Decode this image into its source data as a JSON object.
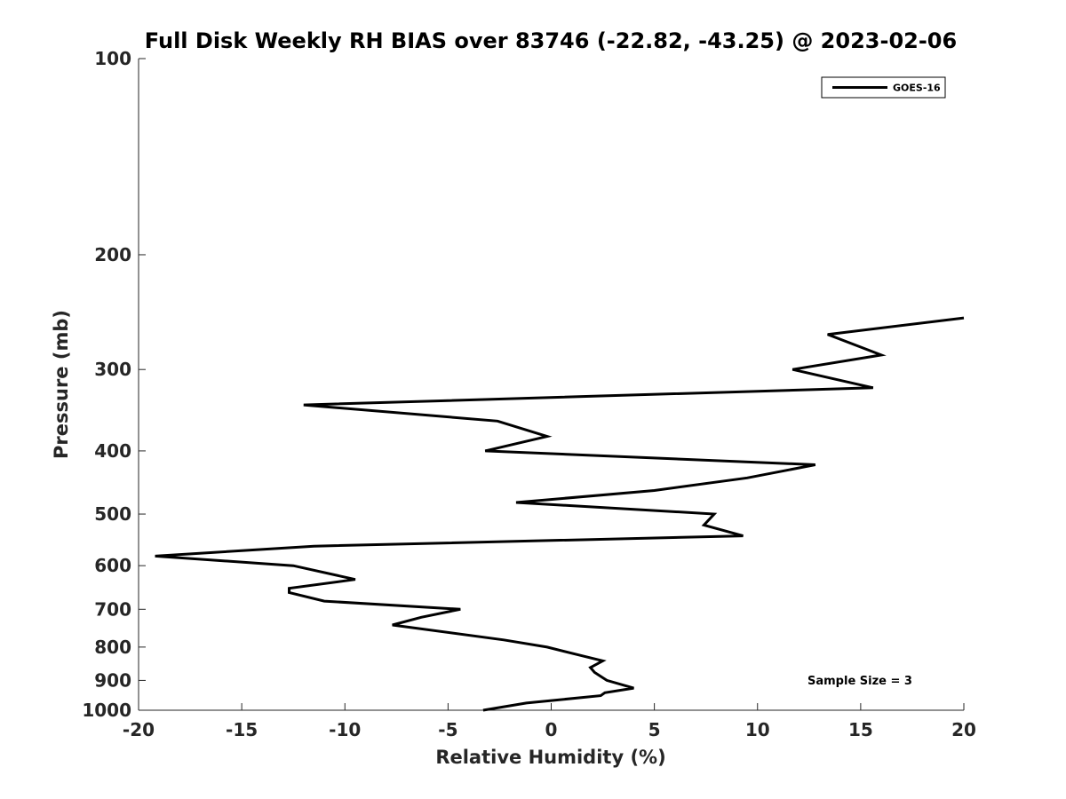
{
  "chart_data": {
    "type": "line",
    "title": "Full Disk Weekly RH BIAS over 83746 (-22.82, -43.25) @ 2023-02-06",
    "xlabel": "Relative Humidity (%)",
    "ylabel": "Pressure (mb)",
    "xlim": [
      -20,
      20
    ],
    "ylim": [
      100,
      1000
    ],
    "y_scale": "log",
    "y_inverted": true,
    "x_ticks": [
      -20,
      -15,
      -10,
      -5,
      0,
      5,
      10,
      15,
      20
    ],
    "x_tick_labels": [
      "-20",
      "-15",
      "-10",
      "-5",
      "0",
      "5",
      "10",
      "15",
      "20"
    ],
    "y_ticks": [
      100,
      200,
      300,
      400,
      500,
      600,
      700,
      800,
      900,
      1000
    ],
    "y_tick_labels": [
      "100",
      "200",
      "300",
      "400",
      "500",
      "600",
      "700",
      "800",
      "900",
      "1000"
    ],
    "grid": false,
    "legend_position": "top-right",
    "series": [
      {
        "name": "GOES-16",
        "color": "#000000",
        "points": [
          {
            "x": 20.0,
            "p": 250
          },
          {
            "x": 13.4,
            "p": 265
          },
          {
            "x": 16.0,
            "p": 285
          },
          {
            "x": 11.7,
            "p": 300
          },
          {
            "x": 15.6,
            "p": 320
          },
          {
            "x": -12.0,
            "p": 340
          },
          {
            "x": -2.6,
            "p": 360
          },
          {
            "x": -0.2,
            "p": 380
          },
          {
            "x": -3.2,
            "p": 400
          },
          {
            "x": 12.8,
            "p": 420
          },
          {
            "x": 9.5,
            "p": 440
          },
          {
            "x": 5.0,
            "p": 460
          },
          {
            "x": -1.7,
            "p": 480
          },
          {
            "x": 7.9,
            "p": 500
          },
          {
            "x": 7.4,
            "p": 520
          },
          {
            "x": 9.3,
            "p": 540
          },
          {
            "x": -11.5,
            "p": 560
          },
          {
            "x": -19.2,
            "p": 580
          },
          {
            "x": -12.5,
            "p": 600
          },
          {
            "x": -9.5,
            "p": 630
          },
          {
            "x": -12.7,
            "p": 650
          },
          {
            "x": -12.7,
            "p": 660
          },
          {
            "x": -11.0,
            "p": 680
          },
          {
            "x": -4.4,
            "p": 700
          },
          {
            "x": -6.3,
            "p": 720
          },
          {
            "x": -7.7,
            "p": 740
          },
          {
            "x": -2.3,
            "p": 780
          },
          {
            "x": -0.2,
            "p": 800
          },
          {
            "x": 1.5,
            "p": 825
          },
          {
            "x": 2.5,
            "p": 840
          },
          {
            "x": 1.9,
            "p": 860
          },
          {
            "x": 2.1,
            "p": 875
          },
          {
            "x": 2.7,
            "p": 900
          },
          {
            "x": 4.0,
            "p": 925
          },
          {
            "x": 2.6,
            "p": 940
          },
          {
            "x": 2.4,
            "p": 950
          },
          {
            "x": -1.2,
            "p": 975
          },
          {
            "x": -3.3,
            "p": 1000
          }
        ]
      }
    ],
    "annotations": [
      {
        "text": "Sample Size = 3",
        "position": "bottom-right"
      }
    ]
  }
}
